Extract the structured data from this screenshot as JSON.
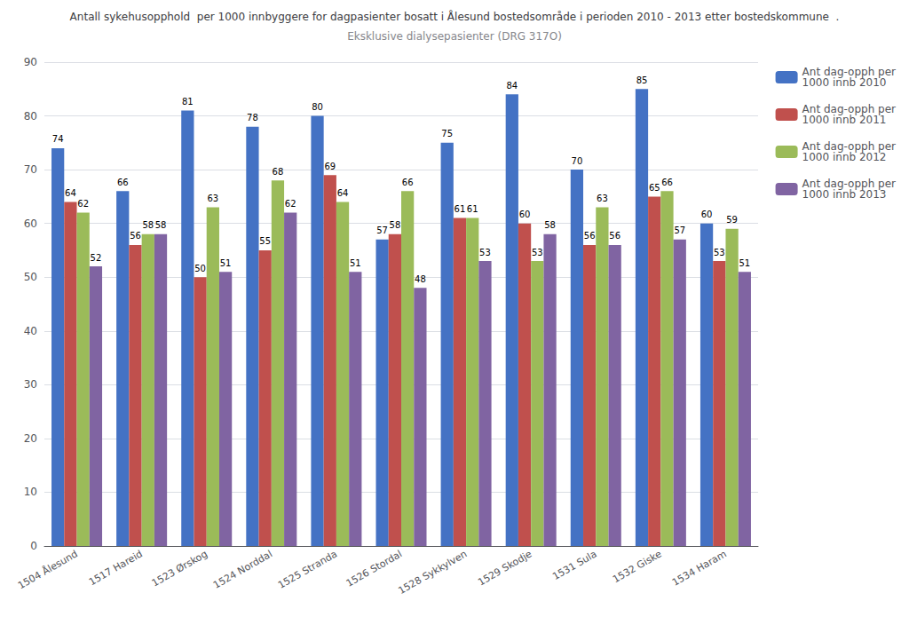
{
  "chart_data": {
    "type": "bar",
    "title": "Antall sykehusopphold  per 1000 innbyggere for dagpasienter bosatt i Ålesund bostedsområde i perioden 2010 - 2013 etter bostedskommune  .",
    "subtitle": "Eksklusive dialysepasienter (DRG 317O)",
    "categories": [
      "1504 Ålesund",
      "1517 Hareid",
      "1523 Ørskog",
      "1524 Norddal",
      "1525 Stranda",
      "1526 Stordal",
      "1528 Sykkylven",
      "1529 Skodje",
      "1531 Sula",
      "1532 Giske",
      "1534 Haram"
    ],
    "series": [
      {
        "name": "Ant dag-opph per\n1000 innb 2010",
        "color": "#4472C4",
        "values": [
          74,
          66,
          81,
          78,
          80,
          57,
          75,
          84,
          70,
          85,
          60
        ]
      },
      {
        "name": "Ant dag-opph per\n1000 innb 2011",
        "color": "#C0504D",
        "values": [
          64,
          56,
          50,
          55,
          69,
          58,
          61,
          60,
          56,
          65,
          53
        ]
      },
      {
        "name": "Ant dag-opph per\n1000 innb 2012",
        "color": "#9BBB59",
        "values": [
          62,
          58,
          63,
          68,
          64,
          66,
          61,
          53,
          63,
          66,
          59
        ]
      },
      {
        "name": "Ant dag-opph per\n1000 innb 2013",
        "color": "#8064A2",
        "values": [
          52,
          58,
          51,
          62,
          51,
          48,
          53,
          58,
          56,
          57,
          51
        ]
      }
    ],
    "ylim": [
      0,
      90
    ],
    "yticks": [
      0,
      10,
      20,
      30,
      40,
      50,
      60,
      70,
      80,
      90
    ],
    "grid": true,
    "legend": "right",
    "data_labels": true
  }
}
